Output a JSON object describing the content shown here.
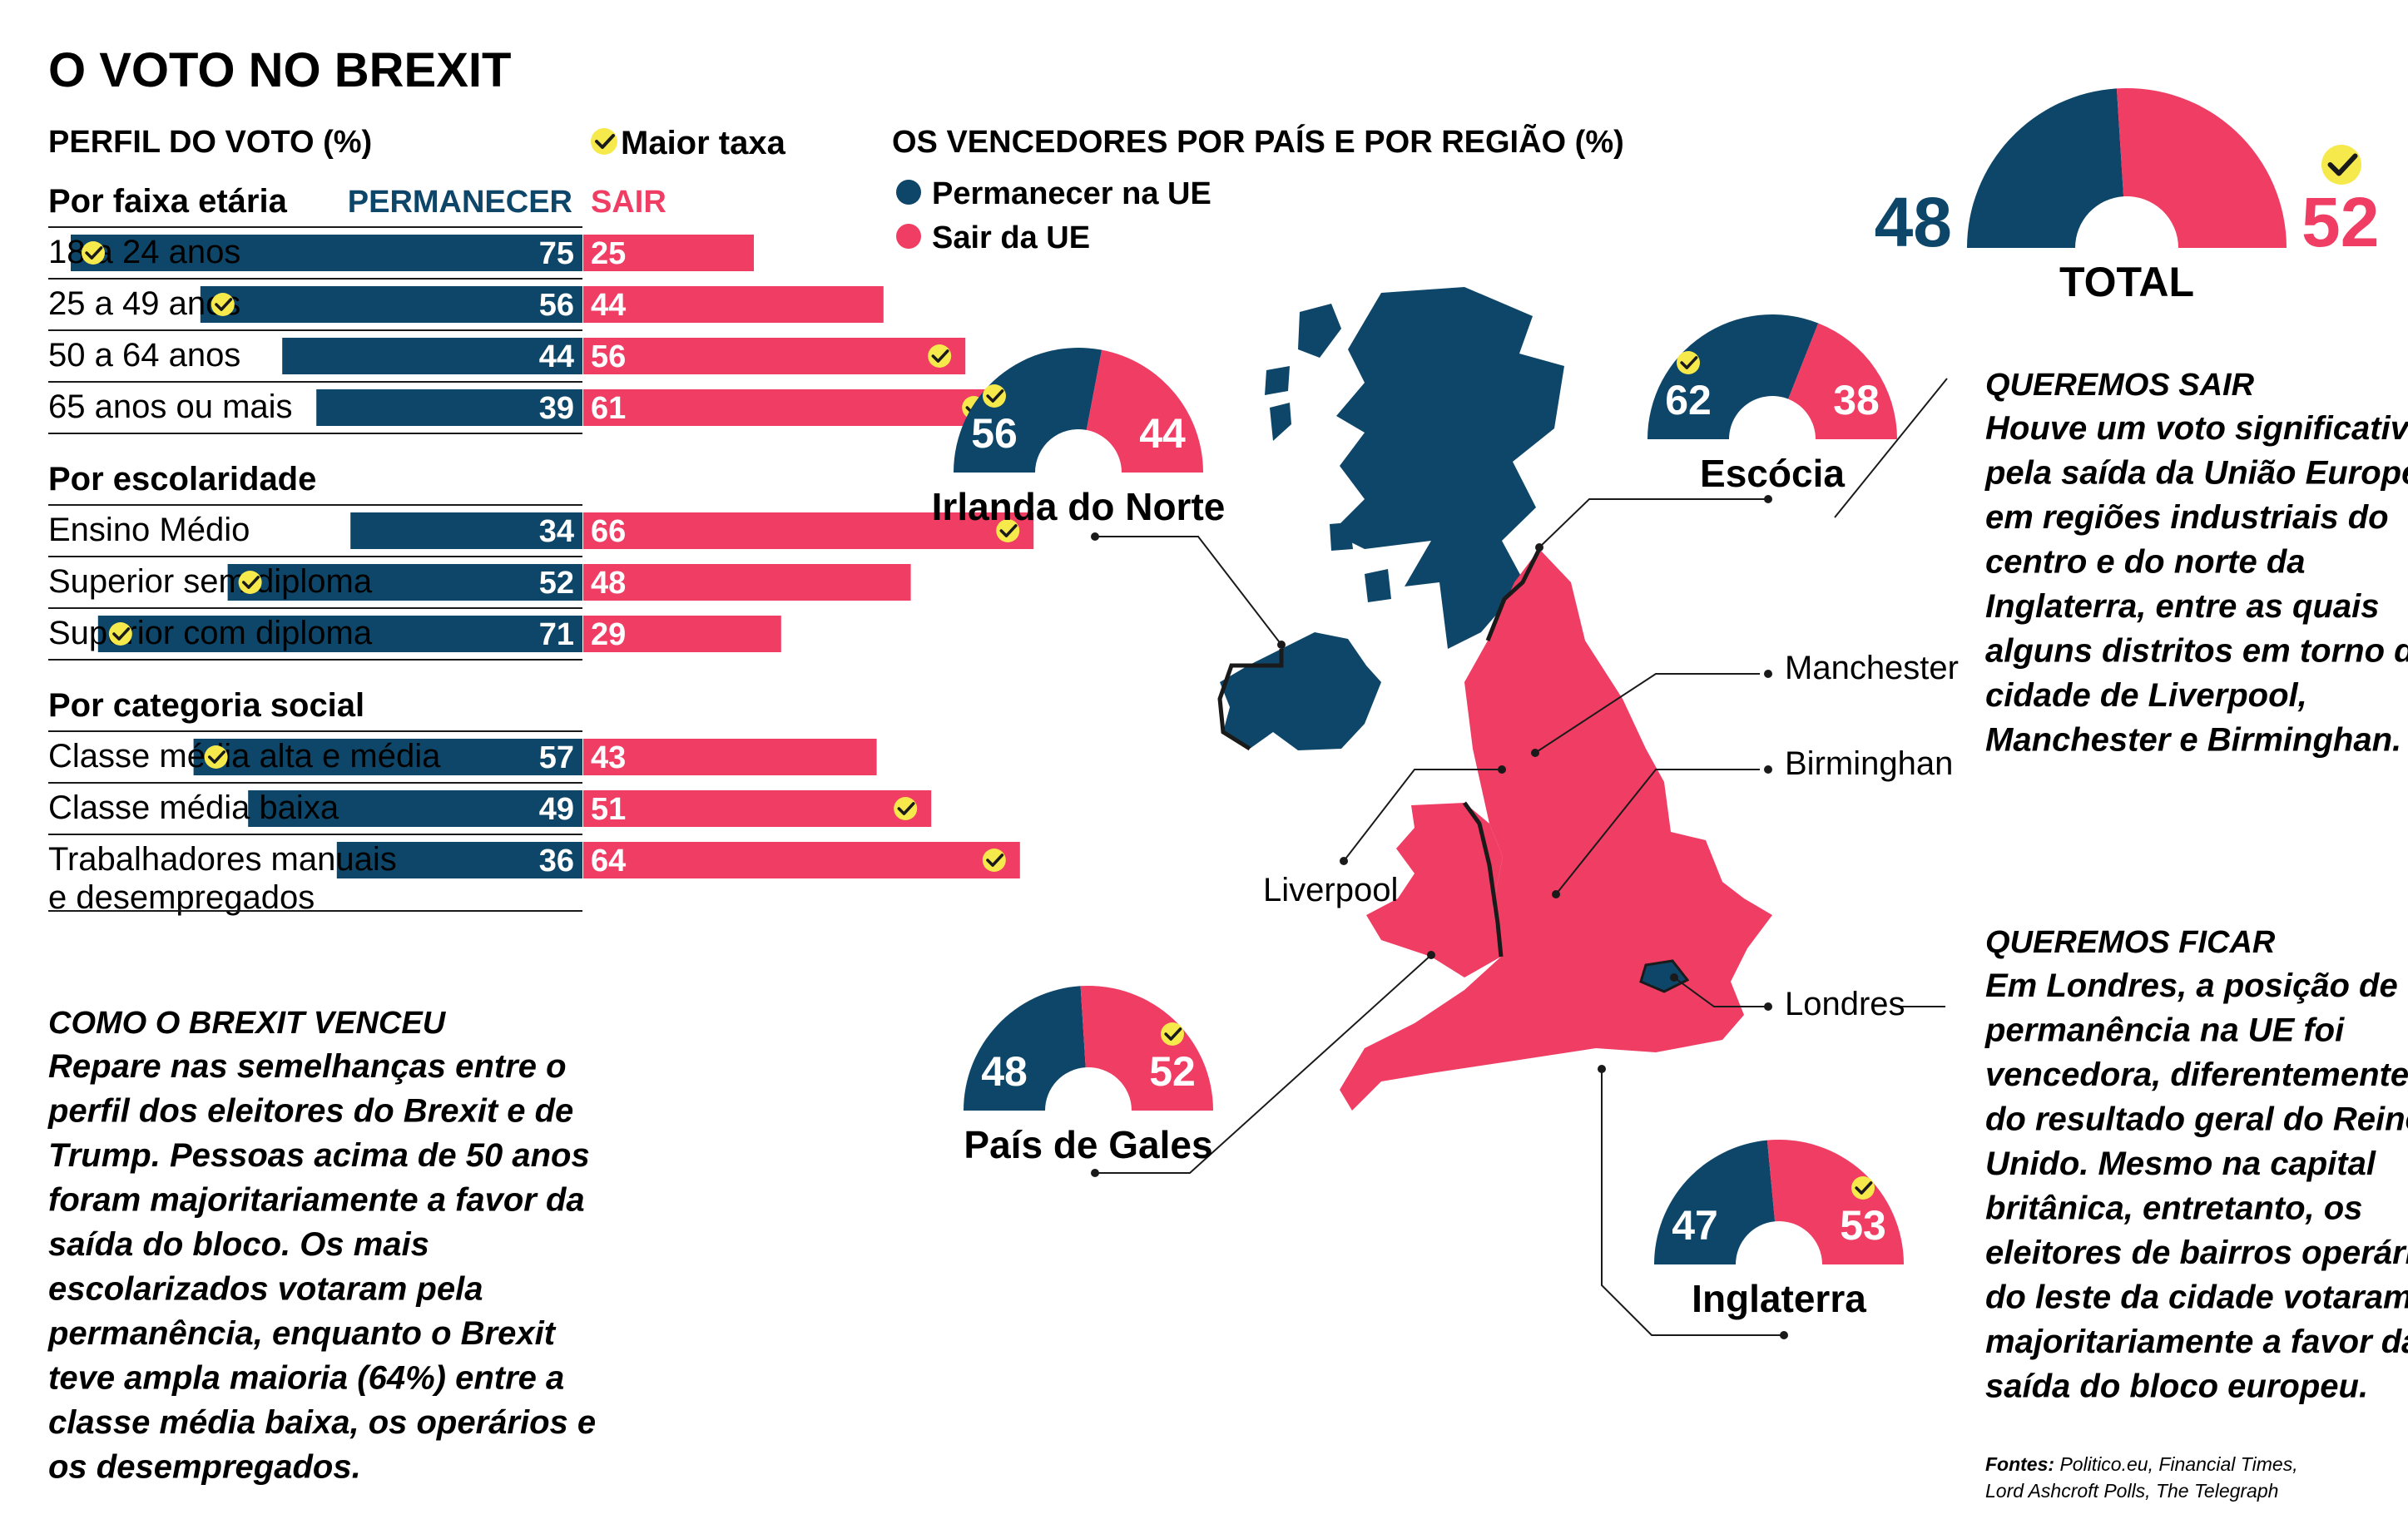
{
  "title": "O VOTO NO BREXIT",
  "colors": {
    "remain": "#0e4669",
    "leave": "#ef3d64",
    "check": "#f6e94c",
    "ink": "#1a1a1a"
  },
  "profile": {
    "title": "PERFIL DO VOTO (%)",
    "legend_check": "Maior taxa",
    "col_remain": "PERMANECER",
    "col_leave": "SAIR",
    "groups": [
      {
        "title": "Por faixa etária",
        "rows": [
          {
            "label": "18 a 24 anos",
            "remain": 75,
            "leave": 25,
            "winner": "remain"
          },
          {
            "label": "25 a 49 anos",
            "remain": 56,
            "leave": 44,
            "winner": "remain"
          },
          {
            "label": "50 a 64 anos",
            "remain": 44,
            "leave": 56,
            "winner": "leave"
          },
          {
            "label": "65  anos ou mais",
            "remain": 39,
            "leave": 61,
            "winner": "leave"
          }
        ]
      },
      {
        "title": "Por escolaridade",
        "rows": [
          {
            "label": "Ensino Médio",
            "remain": 34,
            "leave": 66,
            "winner": "leave"
          },
          {
            "label": "Superior sem diploma",
            "remain": 52,
            "leave": 48,
            "winner": "remain"
          },
          {
            "label": "Superior com diploma",
            "remain": 71,
            "leave": 29,
            "winner": "remain"
          }
        ]
      },
      {
        "title": "Por categoria social",
        "rows": [
          {
            "label": "Classe média alta e média",
            "remain": 57,
            "leave": 43,
            "winner": "remain"
          },
          {
            "label": "Classe média baixa",
            "remain": 49,
            "leave": 51,
            "winner": "leave"
          },
          {
            "label": "Trabalhadores manuais",
            "label2": "e desempregados",
            "remain": 36,
            "leave": 64,
            "winner": "leave"
          }
        ]
      }
    ]
  },
  "how": {
    "title": "COMO O BREXIT VENCEU",
    "lines": [
      "Repare nas semelhanças entre o",
      "perfil dos eleitores do Brexit e de",
      "Trump. Pessoas acima de 50 anos",
      "foram majoritariamente a favor da",
      "saída do bloco. Os mais",
      "escolarizados votaram pela",
      "permanência, enquanto o Brexit",
      "teve ampla maioria (64%) entre a",
      "classe média baixa, os operários e",
      "os desempregados."
    ]
  },
  "winners": {
    "title": "OS VENCEDORES POR PAÍS E POR REGIÃO (%)",
    "legend_remain": "Permanecer na UE",
    "legend_leave": "Sair da UE"
  },
  "chart_data": {
    "type": "pie",
    "title": "OS VENCEDORES POR PAÍS E POR REGIÃO (%)",
    "series": [
      {
        "name": "Permanecer na UE"
      },
      {
        "name": "Sair da UE"
      }
    ],
    "items": [
      {
        "label": "TOTAL",
        "remain": 48,
        "leave": 52,
        "winner": "leave"
      },
      {
        "label": "Irlanda do Norte",
        "remain": 56,
        "leave": 44,
        "winner": "remain"
      },
      {
        "label": "Escócia",
        "remain": 62,
        "leave": 38,
        "winner": "remain"
      },
      {
        "label": "País de Gales",
        "remain": 48,
        "leave": 52,
        "winner": "leave"
      },
      {
        "label": "Inglaterra",
        "remain": 47,
        "leave": 53,
        "winner": "leave"
      }
    ]
  },
  "cities": [
    "Manchester",
    "Birminghan",
    "Liverpool",
    "Londres"
  ],
  "sair_box": {
    "title": "QUEREMOS SAIR",
    "lines": [
      "Houve um voto significativo",
      "pela saída da União Europeia",
      "em regiões industriais do",
      "centro e do norte da",
      "Inglaterra, entre as quais",
      "alguns distritos em torno da",
      "cidade de Liverpool,",
      "Manchester e Birminghan."
    ]
  },
  "ficar_box": {
    "title": "QUEREMOS FICAR",
    "lines": [
      "Em Londres, a posição de",
      "permanência na UE foi",
      "vencedora, diferentemente",
      "do resultado geral do Reino",
      "Unido. Mesmo na capital",
      "britânica, entretanto, os",
      "eleitores de bairros operários",
      "do leste da cidade votaram",
      "majoritariamente a favor da",
      "saída do bloco europeu."
    ]
  },
  "sources": {
    "label": "Fontes:",
    "line1": " Politico.eu, Financial Times,",
    "line2": "Lord Ashcroft Polls, The Telegraph"
  }
}
